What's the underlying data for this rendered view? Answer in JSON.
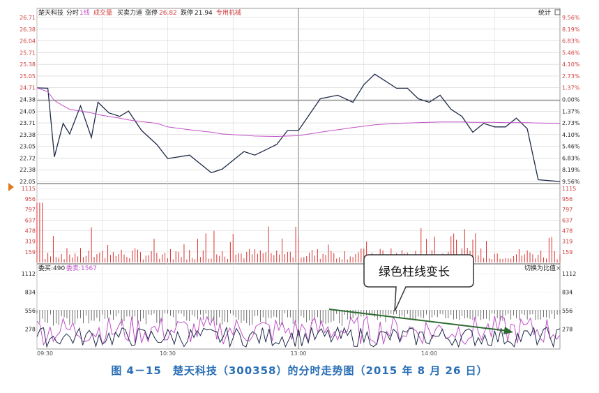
{
  "header": {
    "stock_name": "楚天科技",
    "mode": "分时",
    "line_mode": "1线",
    "volume": "成交量",
    "force": "买卖力道",
    "limit_up_label": "涨停",
    "limit_up_value": "26.82",
    "limit_down_label": "跌停",
    "limit_down_value": "21.94",
    "extra": "专用机械",
    "stats": "统计"
  },
  "colors": {
    "price_line": "#1e2a48",
    "avg_line": "#c052c8",
    "volume_bar": "#d83030",
    "axis_text_red": "#d04040",
    "axis_text_dark": "#222222",
    "grid": "#c8c8c8",
    "arrow": "#2d6a30",
    "caption": "#2a6fb6"
  },
  "price_axis": {
    "left_labels": [
      "26.71",
      "26.38",
      "26.04",
      "25.71",
      "25.38",
      "25.05",
      "24.71",
      "24.38",
      "24.05",
      "23.71",
      "23.38",
      "23.05",
      "22.72",
      "22.38",
      "22.05"
    ],
    "right_labels": [
      "9.56%",
      "8.19%",
      "6.83%",
      "5.46%",
      "4.10%",
      "2.73%",
      "1.37%",
      "0.00%",
      "1.37%",
      "2.73%",
      "4.10%",
      "5.46%",
      "6.83%",
      "8.19%",
      "9.56%"
    ],
    "prev_close": "24.38"
  },
  "volume_axis": {
    "labels": [
      "1115",
      "956",
      "797",
      "637",
      "478",
      "319",
      "159"
    ]
  },
  "order_panel": {
    "buy_label": "委买:490",
    "sell_label": "委卖:1567",
    "switch_label": "切换为比值",
    "close_glyph": "×",
    "axis_labels": [
      "1112",
      "834",
      "556",
      "278"
    ]
  },
  "time_labels": [
    "09:30",
    "10:30",
    "13:00",
    "14:00"
  ],
  "annotation": {
    "text": "绿色柱线变长"
  },
  "caption": "图 4－15　楚天科技（300358）的分时走势图（2015 年 8 月 26 日）",
  "chart_data": {
    "type": "line",
    "x_unit": "minutes since 09:30 (trading time)",
    "x": [
      0,
      5,
      8,
      12,
      15,
      20,
      25,
      28,
      33,
      38,
      42,
      48,
      55,
      60,
      70,
      80,
      85,
      95,
      100,
      110,
      115,
      120,
      130,
      138,
      145,
      150,
      155,
      160,
      165,
      170,
      175,
      180,
      185,
      190,
      195,
      200,
      205,
      210,
      215,
      220,
      225,
      230,
      240
    ],
    "series": [
      {
        "name": "price",
        "values": [
          24.71,
          24.7,
          22.75,
          23.7,
          23.4,
          24.2,
          23.3,
          24.3,
          24.0,
          23.9,
          24.05,
          23.5,
          23.1,
          22.7,
          22.8,
          22.3,
          22.4,
          22.9,
          22.8,
          23.1,
          23.5,
          23.5,
          24.4,
          24.5,
          24.3,
          24.8,
          25.1,
          24.9,
          24.7,
          24.7,
          24.4,
          24.3,
          24.5,
          24.1,
          23.9,
          23.45,
          23.7,
          23.6,
          23.6,
          23.85,
          23.55,
          22.1,
          22.05
        ]
      },
      {
        "name": "average",
        "values": [
          24.71,
          24.6,
          24.35,
          24.2,
          24.1,
          24.05,
          24.0,
          23.95,
          23.9,
          23.85,
          23.8,
          23.75,
          23.7,
          23.6,
          23.52,
          23.45,
          23.4,
          23.36,
          23.34,
          23.33,
          23.34,
          23.35,
          23.45,
          23.52,
          23.58,
          23.62,
          23.66,
          23.68,
          23.7,
          23.71,
          23.72,
          23.73,
          23.74,
          23.74,
          23.74,
          23.73,
          23.73,
          23.73,
          23.72,
          23.72,
          23.72,
          23.71,
          23.7
        ]
      }
    ],
    "ylim": [
      22.05,
      26.71
    ],
    "volume_ylim": [
      0,
      1115
    ],
    "order_ylim": [
      0,
      1112
    ]
  }
}
